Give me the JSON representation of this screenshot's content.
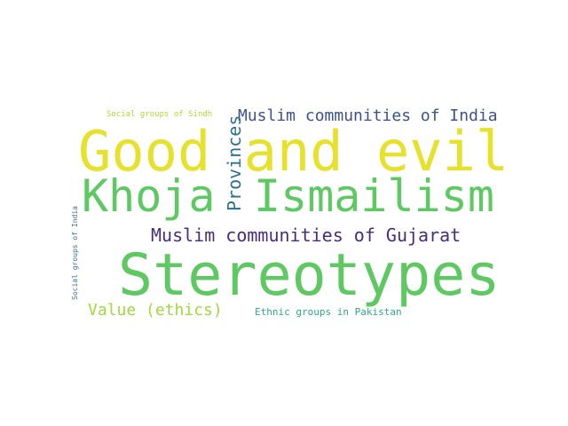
{
  "words": [
    {
      "text": "Good and evil",
      "color": "#e6e12a"
    },
    {
      "text": "Khoja",
      "color": "#5ec962"
    },
    {
      "text": "Ismailism",
      "color": "#5ec962"
    },
    {
      "text": "Stereotypes",
      "color": "#5ec962"
    },
    {
      "text": "Muslim communities of India",
      "color": "#3b528b"
    },
    {
      "text": "Muslim communities of Gujarat",
      "color": "#472d7b"
    },
    {
      "text": "Provinces",
      "color": "#2c728e"
    },
    {
      "text": "Value (ethics)",
      "color": "#9fda3a"
    },
    {
      "text": "Ethnic groups in Pakistan",
      "color": "#28ae80"
    },
    {
      "text": "Social groups of Sindh",
      "color": "#addc30"
    },
    {
      "text": "Social groups of India",
      "color": "#3b6f9a"
    }
  ]
}
